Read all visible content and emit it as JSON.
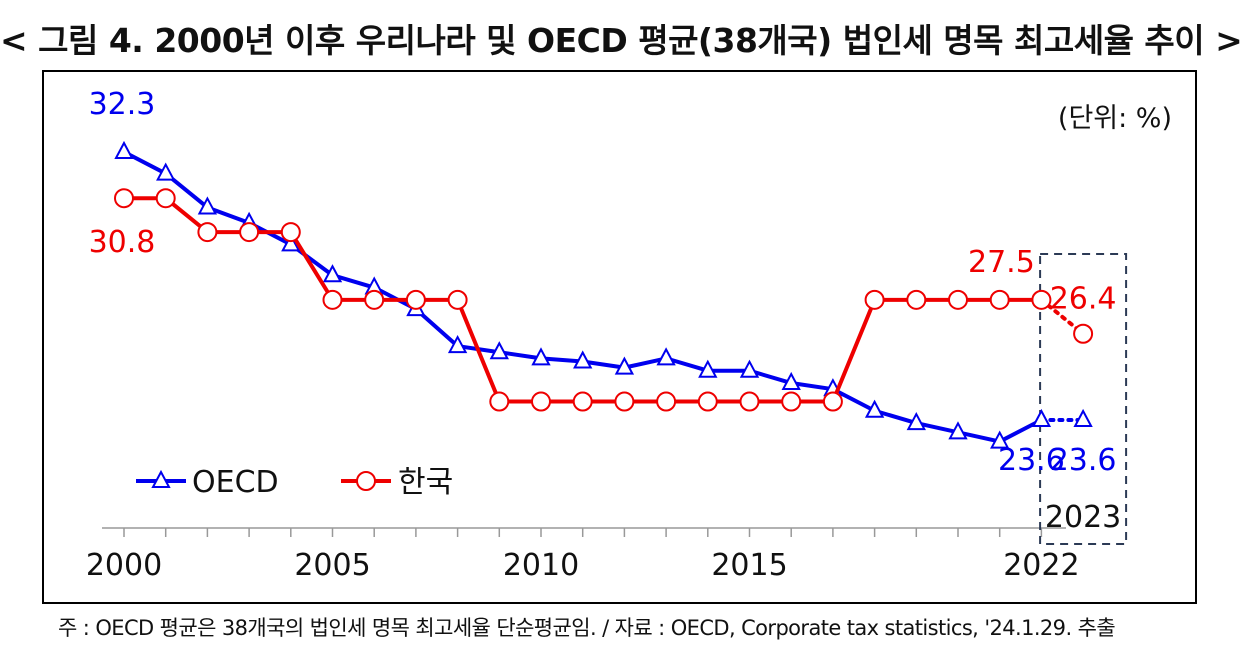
{
  "title": "< 그림 4. 2000년 이후 우리나라 및 OECD 평균(38개국) 법인세 명목 최고세율 추이 >",
  "footnote": "주 : OECD 평균은 38개국의 법인세 명목 최고세율 단순평균임. / 자료 : OECD, Corporate tax statistics, '24.1.29. 추출",
  "chart_data": {
    "type": "line",
    "unit_label": "(단위: %)",
    "x": [
      2000,
      2001,
      2002,
      2003,
      2004,
      2005,
      2006,
      2007,
      2008,
      2009,
      2010,
      2011,
      2012,
      2013,
      2014,
      2015,
      2016,
      2017,
      2018,
      2019,
      2020,
      2021,
      2022,
      2023
    ],
    "x_tick_labels": [
      {
        "x": 2000,
        "label": "2000"
      },
      {
        "x": 2005,
        "label": "2005"
      },
      {
        "x": 2010,
        "label": "2010"
      },
      {
        "x": 2015,
        "label": "2015"
      },
      {
        "x": 2022,
        "label": "2022"
      },
      {
        "x": 2023,
        "label": "2023"
      }
    ],
    "ylim": [
      18,
      34
    ],
    "grid": false,
    "legend": "bottom-left",
    "highlight_box": {
      "x": 2023,
      "label": "2023"
    },
    "series": [
      {
        "name": "OECD",
        "color": "#0000ee",
        "marker": "triangle",
        "values": [
          32.3,
          31.6,
          30.5,
          30.0,
          29.3,
          28.3,
          27.9,
          27.2,
          26.0,
          25.8,
          25.6,
          25.5,
          25.3,
          25.6,
          25.2,
          25.2,
          24.8,
          24.6,
          23.9,
          23.5,
          23.2,
          22.9,
          23.6,
          23.6
        ],
        "projected_from": 2022
      },
      {
        "name": "한국",
        "color": "#ee0000",
        "marker": "circle",
        "values": [
          30.8,
          30.8,
          29.7,
          29.7,
          29.7,
          27.5,
          27.5,
          27.5,
          27.5,
          24.2,
          24.2,
          24.2,
          24.2,
          24.2,
          24.2,
          24.2,
          24.2,
          24.2,
          27.5,
          27.5,
          27.5,
          27.5,
          27.5,
          26.4
        ],
        "projected_from": 2022
      }
    ],
    "annotations": [
      {
        "series": "OECD",
        "x": 2000,
        "text": "32.3",
        "color": "#0000ee"
      },
      {
        "series": "한국",
        "x": 2000,
        "text": "30.8",
        "color": "#ee0000"
      },
      {
        "series": "한국",
        "x": 2022,
        "text": "27.5",
        "color": "#ee0000"
      },
      {
        "series": "한국",
        "x": 2023,
        "text": "26.4",
        "color": "#ee0000"
      },
      {
        "series": "OECD",
        "x": 2022,
        "text": "23.6",
        "color": "#0000ee"
      },
      {
        "series": "OECD",
        "x": 2023,
        "text": "23.6",
        "color": "#0000ee"
      }
    ]
  }
}
